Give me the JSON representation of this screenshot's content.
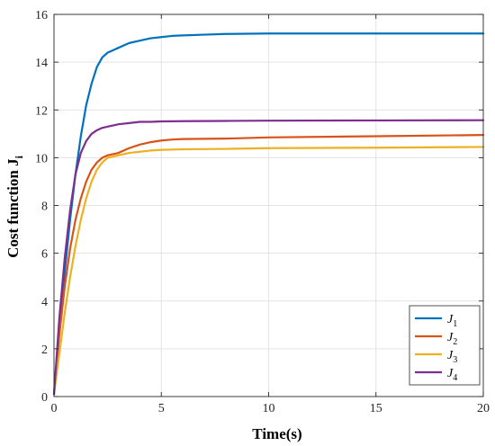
{
  "chart_data": {
    "type": "line",
    "title": "",
    "xlabel": "Time(s)",
    "ylabel": "Cost function J",
    "ylabel_subscript": "i",
    "xlim": [
      0,
      20
    ],
    "ylim": [
      0,
      16
    ],
    "xticks": [
      0,
      5,
      10,
      15,
      20
    ],
    "yticks": [
      0,
      2,
      4,
      6,
      8,
      10,
      12,
      14,
      16
    ],
    "grid": true,
    "legend_position": "bottom-right",
    "series": [
      {
        "name": "J",
        "sub": "1",
        "color": "#0072BD",
        "x": [
          0,
          0.25,
          0.5,
          0.75,
          1.0,
          1.25,
          1.5,
          1.75,
          2.0,
          2.25,
          2.5,
          2.75,
          3.0,
          3.5,
          4.0,
          4.5,
          5.0,
          5.5,
          6.0,
          7.0,
          8.0,
          10.0,
          12.0,
          15.0,
          20.0
        ],
        "y": [
          0.1,
          2.7,
          5.2,
          7.4,
          9.3,
          10.9,
          12.2,
          13.1,
          13.8,
          14.2,
          14.4,
          14.5,
          14.6,
          14.8,
          14.9,
          15.0,
          15.05,
          15.1,
          15.12,
          15.15,
          15.18,
          15.2,
          15.2,
          15.2,
          15.2
        ]
      },
      {
        "name": "J",
        "sub": "2",
        "color": "#D95319",
        "x": [
          0,
          0.25,
          0.5,
          0.75,
          1.0,
          1.25,
          1.5,
          1.75,
          2.0,
          2.25,
          2.5,
          2.75,
          3.0,
          3.5,
          4.0,
          4.5,
          5.0,
          5.5,
          6.0,
          8.0,
          10.0,
          15.0,
          20.0
        ],
        "y": [
          0.1,
          2.6,
          4.6,
          6.2,
          7.4,
          8.3,
          9.0,
          9.5,
          9.8,
          10.0,
          10.1,
          10.15,
          10.2,
          10.4,
          10.55,
          10.65,
          10.72,
          10.76,
          10.78,
          10.8,
          10.85,
          10.9,
          10.95
        ]
      },
      {
        "name": "J",
        "sub": "3",
        "color": "#EDB120",
        "x": [
          0,
          0.25,
          0.5,
          0.75,
          1.0,
          1.25,
          1.5,
          1.75,
          2.0,
          2.25,
          2.5,
          2.75,
          3.0,
          3.5,
          4.0,
          4.5,
          5.0,
          6.0,
          8.0,
          10.0,
          15.0,
          20.0
        ],
        "y": [
          0.1,
          1.8,
          3.5,
          5.0,
          6.3,
          7.4,
          8.3,
          9.0,
          9.5,
          9.8,
          10.0,
          10.05,
          10.1,
          10.2,
          10.25,
          10.3,
          10.33,
          10.35,
          10.37,
          10.4,
          10.42,
          10.45
        ]
      },
      {
        "name": "J",
        "sub": "4",
        "color": "#7E2F8E",
        "x": [
          0,
          0.25,
          0.5,
          0.75,
          1.0,
          1.25,
          1.5,
          1.75,
          2.0,
          2.25,
          2.5,
          3.0,
          3.5,
          4.0,
          4.5,
          5.0,
          6.0,
          8.0,
          10.0,
          15.0,
          20.0
        ],
        "y": [
          0.1,
          3.3,
          5.8,
          7.8,
          9.3,
          10.2,
          10.7,
          11.0,
          11.15,
          11.25,
          11.3,
          11.4,
          11.45,
          11.5,
          11.5,
          11.52,
          11.53,
          11.54,
          11.55,
          11.56,
          11.57
        ]
      }
    ]
  }
}
